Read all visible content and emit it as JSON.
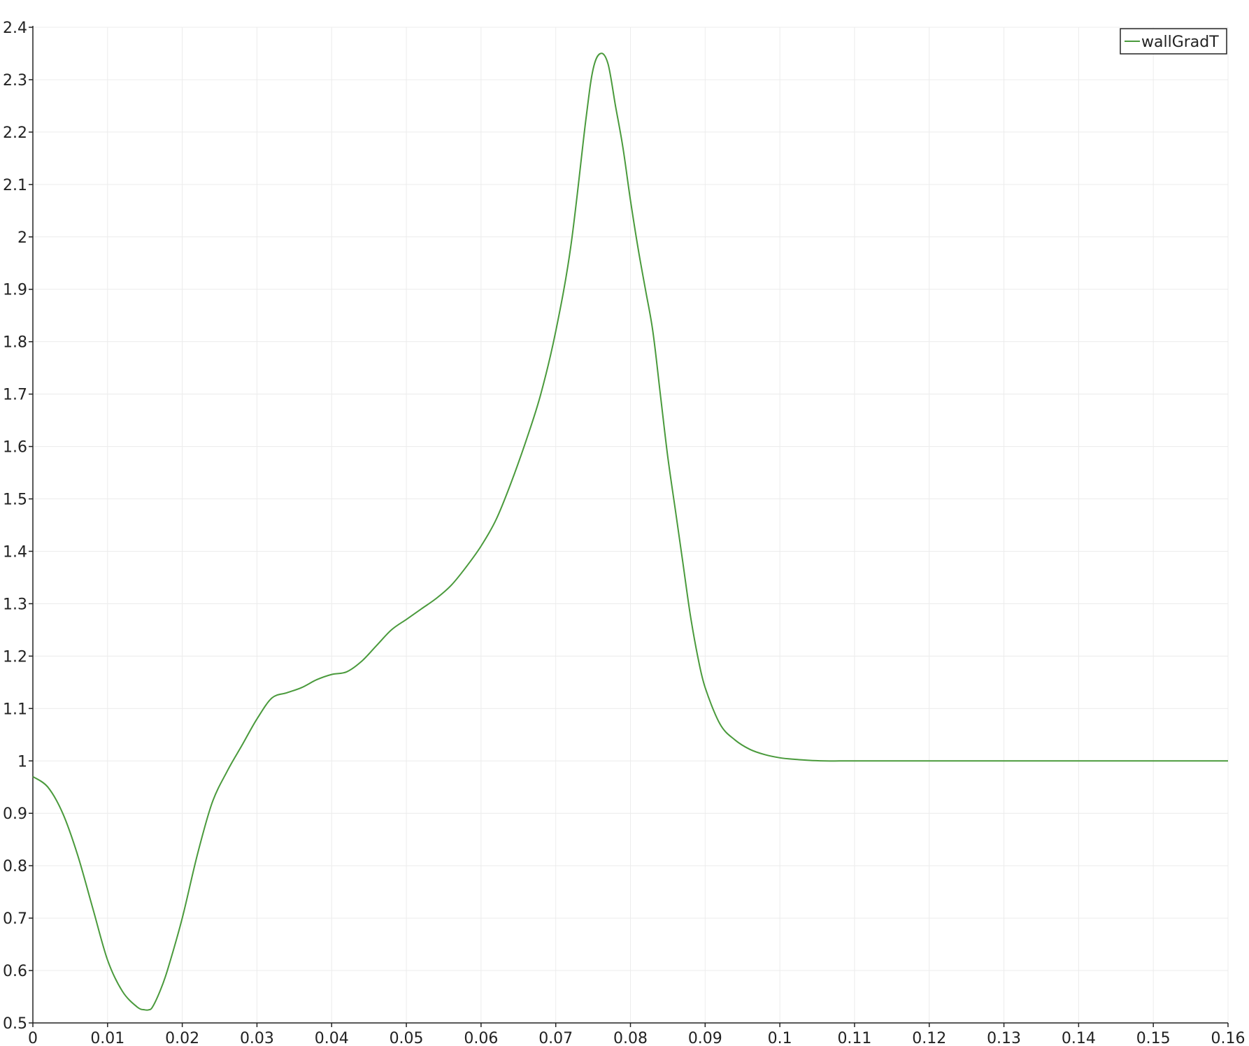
{
  "chart_data": {
    "type": "line",
    "title": "",
    "xlabel": "",
    "ylabel": "",
    "xlim": [
      0,
      0.16
    ],
    "ylim": [
      0.5,
      2.4
    ],
    "xticks": [
      "0",
      "0.01",
      "0.02",
      "0.03",
      "0.04",
      "0.05",
      "0.06",
      "0.07",
      "0.08",
      "0.09",
      "0.1",
      "0.11",
      "0.12",
      "0.13",
      "0.14",
      "0.15",
      "0.16"
    ],
    "yticks": [
      "0.5",
      "0.6",
      "0.7",
      "0.8",
      "0.9",
      "1",
      "1.1",
      "1.2",
      "1.3",
      "1.4",
      "1.5",
      "1.6",
      "1.7",
      "1.8",
      "1.9",
      "2",
      "2.1",
      "2.2",
      "2.3",
      "2.4"
    ],
    "grid": true,
    "legend_position": "top-right",
    "series": [
      {
        "name": "wallGradT",
        "color": "#4a9a3c",
        "x": [
          0,
          0.002,
          0.004,
          0.006,
          0.008,
          0.01,
          0.012,
          0.014,
          0.015,
          0.0155,
          0.016,
          0.017,
          0.018,
          0.02,
          0.022,
          0.024,
          0.026,
          0.028,
          0.03,
          0.032,
          0.034,
          0.036,
          0.038,
          0.04,
          0.042,
          0.044,
          0.046,
          0.048,
          0.05,
          0.052,
          0.054,
          0.056,
          0.058,
          0.06,
          0.062,
          0.064,
          0.066,
          0.068,
          0.07,
          0.072,
          0.074,
          0.075,
          0.076,
          0.077,
          0.078,
          0.079,
          0.08,
          0.081,
          0.082,
          0.083,
          0.084,
          0.085,
          0.086,
          0.087,
          0.088,
          0.089,
          0.09,
          0.092,
          0.094,
          0.096,
          0.098,
          0.1,
          0.102,
          0.104,
          0.106,
          0.108,
          0.11,
          0.12,
          0.13,
          0.14,
          0.15,
          0.16
        ],
        "y": [
          0.97,
          0.95,
          0.9,
          0.82,
          0.72,
          0.62,
          0.56,
          0.53,
          0.525,
          0.525,
          0.53,
          0.56,
          0.6,
          0.7,
          0.82,
          0.92,
          0.98,
          1.03,
          1.08,
          1.12,
          1.13,
          1.14,
          1.155,
          1.165,
          1.17,
          1.19,
          1.22,
          1.25,
          1.27,
          1.29,
          1.31,
          1.335,
          1.37,
          1.41,
          1.46,
          1.53,
          1.61,
          1.7,
          1.82,
          1.98,
          2.22,
          2.32,
          2.35,
          2.33,
          2.25,
          2.17,
          2.07,
          1.98,
          1.9,
          1.82,
          1.7,
          1.58,
          1.48,
          1.38,
          1.28,
          1.2,
          1.14,
          1.07,
          1.04,
          1.022,
          1.012,
          1.006,
          1.003,
          1.001,
          1.0,
          1.0,
          1.0,
          1.0,
          1.0,
          1.0,
          1.0,
          1.0
        ]
      }
    ]
  }
}
